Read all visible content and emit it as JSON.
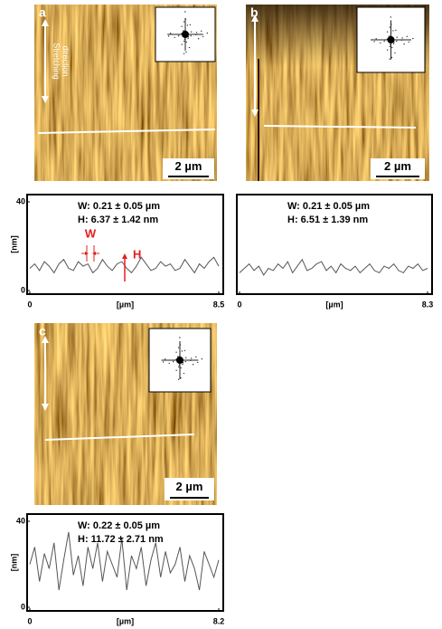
{
  "panels": [
    {
      "label": "a",
      "scale_bar": "2 µm",
      "arrow_label": [
        "Stretching",
        "direction"
      ]
    },
    {
      "label": "b",
      "scale_bar": "2 µm"
    },
    {
      "label": "c",
      "scale_bar": "2 µm"
    }
  ],
  "chart_data": [
    {
      "type": "line",
      "annotations": [
        "W: 0.21 ± 0.05 µm",
        "H: 6.37 ± 1.42 nm"
      ],
      "markers": [
        "W",
        "H"
      ],
      "xlabel": "[µm]",
      "ylabel": "[nm]",
      "xlim": [
        0,
        8.5
      ],
      "xticks": [
        0,
        8.5
      ],
      "ylim": [
        0,
        40
      ],
      "yticks": [
        0,
        40
      ],
      "color": "#555555",
      "values": [
        10,
        12,
        9,
        13,
        11,
        8,
        12,
        14,
        10,
        9,
        13,
        11,
        12,
        8,
        10,
        14,
        11,
        9,
        12,
        13,
        10,
        8,
        11,
        15,
        12,
        9,
        10,
        13,
        11,
        12,
        9,
        10,
        14,
        11,
        8,
        12,
        10,
        13,
        15,
        11
      ]
    },
    {
      "type": "line",
      "annotations": [
        "W: 0.21 ± 0.05 µm",
        "H: 6.51 ± 1.39 nm"
      ],
      "xlabel": "[µm]",
      "xlim": [
        0,
        8.3
      ],
      "xticks": [
        0,
        8.3
      ],
      "ylim": [
        0,
        40
      ],
      "color": "#555555",
      "values": [
        8,
        10,
        12,
        9,
        11,
        7,
        10,
        9,
        12,
        10,
        13,
        8,
        11,
        14,
        9,
        10,
        12,
        13,
        9,
        11,
        8,
        12,
        10,
        9,
        11,
        8,
        10,
        12,
        9,
        8,
        11,
        10,
        12,
        9,
        8,
        11,
        10,
        12,
        9,
        10
      ]
    },
    {
      "type": "line",
      "annotations": [
        "W: 0.22 ± 0.05 µm",
        "H: 11.72 ± 2.71 nm"
      ],
      "xlabel": "[µm]",
      "ylabel": "[nm]",
      "xlim": [
        0,
        8.2
      ],
      "xticks": [
        0,
        8.2
      ],
      "ylim": [
        0,
        40
      ],
      "yticks": [
        0,
        40
      ],
      "color": "#555555",
      "values": [
        20,
        28,
        12,
        25,
        18,
        30,
        8,
        22,
        35,
        15,
        24,
        10,
        28,
        18,
        30,
        12,
        26,
        20,
        14,
        32,
        8,
        24,
        18,
        28,
        10,
        22,
        30,
        14,
        26,
        16,
        20,
        28,
        12,
        24,
        18,
        8,
        26,
        20,
        14,
        22
      ]
    }
  ]
}
